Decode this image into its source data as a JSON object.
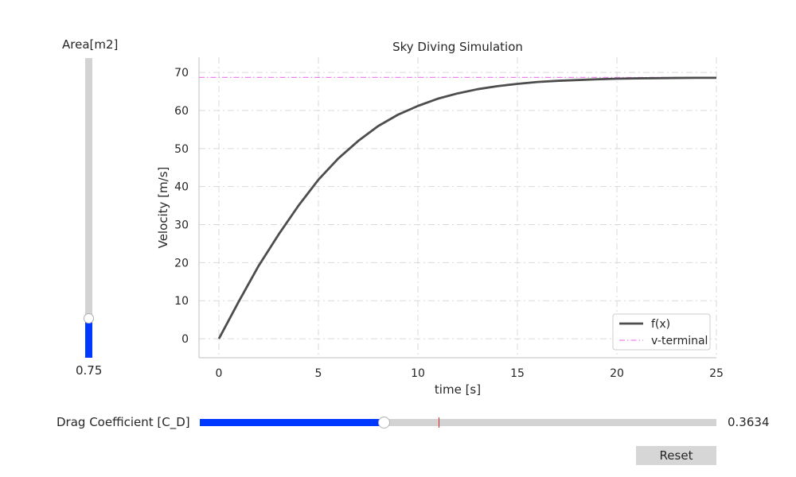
{
  "colors": {
    "slider_fill": "#0038ff",
    "slider_track": "#d3d3d3",
    "init_marker": "#d62728",
    "curve": "#4d4d4d",
    "terminal": "#ee82ee",
    "grid": "#d9d9d9"
  },
  "area_slider": {
    "label": "Area[m2]",
    "value_text": "0.75",
    "fraction": 0.13
  },
  "cd_slider": {
    "label": "Drag Coefficient [C_D]",
    "value_text": "0.3634",
    "fraction": 0.357,
    "initial_fraction": 0.462
  },
  "reset_label": "Reset",
  "chart_data": {
    "type": "line",
    "title": "Sky Diving Simulation",
    "xlabel": "time [s]",
    "ylabel": "Velocity [m/s]",
    "xlim": [
      -1,
      25
    ],
    "ylim": [
      -5,
      74
    ],
    "xticks": [
      0,
      5,
      10,
      15,
      20,
      25
    ],
    "yticks": [
      0,
      10,
      20,
      30,
      40,
      50,
      60,
      70
    ],
    "grid": true,
    "legend_position": "bottom-right",
    "series": [
      {
        "name": "f(x)",
        "style": "solid",
        "x": [
          0,
          1,
          2,
          3,
          4,
          5,
          6,
          7,
          8,
          9,
          10,
          11,
          12,
          13,
          14,
          15,
          16,
          17,
          18,
          19,
          20,
          21,
          22,
          23,
          24,
          25
        ],
        "y": [
          0,
          9.8,
          19.2,
          27.4,
          35.0,
          41.8,
          47.4,
          52.0,
          55.9,
          58.9,
          61.2,
          63.1,
          64.5,
          65.6,
          66.4,
          67.0,
          67.5,
          67.8,
          68.0,
          68.2,
          68.35,
          68.45,
          68.5,
          68.55,
          68.6,
          68.6
        ]
      },
      {
        "name": "v-terminal",
        "style": "dashdot",
        "x": [
          -1,
          25
        ],
        "y": [
          68.7,
          68.7
        ]
      }
    ]
  }
}
